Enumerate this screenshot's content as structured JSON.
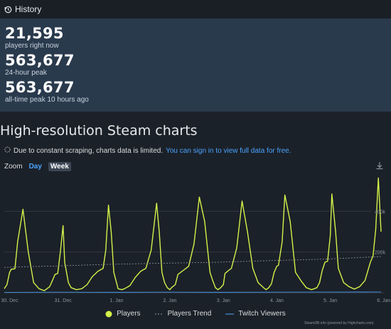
{
  "header": {
    "title": "History"
  },
  "stats": [
    {
      "value": "21,595",
      "label": "players right now"
    },
    {
      "value": "563,677",
      "label": "24-hour peak"
    },
    {
      "value": "563,677",
      "label": "all-time peak 10 hours ago"
    }
  ],
  "section_title": "High-resolution Steam charts",
  "notice": {
    "text": "Due to constant scraping, charts data is limited.",
    "link": "You can sign in to view full data for free."
  },
  "zoom": {
    "label": "Zoom",
    "day": "Day",
    "week": "Week"
  },
  "legend": {
    "players": "Players",
    "trend": "Players Trend",
    "twitch": "Twitch Viewers"
  },
  "credit": "SteamDB.info (powered by Highcharts.com)",
  "colors": {
    "players": "#d4f24a",
    "trend": "#8f98a1",
    "twitch": "#4aa3ff",
    "accent": "#4aa3ff"
  },
  "chart_data": {
    "type": "line",
    "x_tick_labels": [
      "30. Dec",
      "31. Dec",
      "1. Jan",
      "2. Jan",
      "3. Jan",
      "4. Jan",
      "5. Jan",
      "6. Jan"
    ],
    "y_tick_labels": [
      "400k",
      "200k"
    ],
    "ylim": [
      0,
      600000
    ],
    "series": [
      {
        "name": "Players",
        "x": [
          0,
          0.05,
          0.1,
          0.13,
          0.2,
          0.25,
          0.35,
          0.45,
          0.55,
          0.65,
          0.75,
          0.85,
          0.9,
          0.95,
          1.0,
          1.05,
          1.1,
          1.13,
          1.2,
          1.25,
          1.35,
          1.45,
          1.55,
          1.65,
          1.75,
          1.85,
          1.9,
          1.95,
          2.0,
          2.05,
          2.1,
          2.13,
          2.2,
          2.25,
          2.35,
          2.45,
          2.55,
          2.65,
          2.75,
          2.85,
          2.9,
          2.95,
          3.0,
          3.05,
          3.1,
          3.13,
          3.2,
          3.25,
          3.35,
          3.45,
          3.55,
          3.65,
          3.75,
          3.85,
          3.9,
          3.95,
          4.0,
          4.05,
          4.1,
          4.13,
          4.2,
          4.25,
          4.35,
          4.45,
          4.55,
          4.65,
          4.75,
          4.85,
          4.9,
          4.95,
          5.0,
          5.05,
          5.1,
          5.13,
          5.2,
          5.25,
          5.35,
          5.45,
          5.55,
          5.65,
          5.75,
          5.85,
          5.9,
          5.95,
          6.0,
          6.05,
          6.1,
          6.13,
          6.2,
          6.25,
          6.35,
          6.45,
          6.55,
          6.65,
          6.75,
          6.85,
          6.9,
          6.95,
          7.0,
          7.05
        ],
        "values": [
          20000,
          40000,
          100000,
          115000,
          118000,
          250000,
          410000,
          200000,
          50000,
          20000,
          10000,
          30000,
          60000,
          90000,
          95000,
          200000,
          330000,
          150000,
          50000,
          25000,
          15000,
          20000,
          40000,
          80000,
          105000,
          120000,
          210000,
          430000,
          300000,
          100000,
          50000,
          20000,
          15000,
          20000,
          35000,
          75000,
          105000,
          120000,
          210000,
          440000,
          300000,
          100000,
          50000,
          25000,
          15000,
          25000,
          40000,
          90000,
          110000,
          130000,
          240000,
          470000,
          350000,
          100000,
          60000,
          25000,
          15000,
          25000,
          40000,
          95000,
          110000,
          120000,
          220000,
          450000,
          300000,
          120000,
          50000,
          25000,
          15000,
          25000,
          45000,
          100000,
          130000,
          135000,
          250000,
          480000,
          350000,
          100000,
          60000,
          25000,
          15000,
          25000,
          50000,
          110000,
          150000,
          155000,
          280000,
          485000,
          300000,
          120000,
          50000,
          30000,
          18000,
          30000,
          60000,
          150000,
          180000,
          310000,
          563677,
          300000
        ]
      },
      {
        "name": "Players Trend",
        "x": [
          0,
          1,
          2,
          3,
          4,
          5,
          6,
          7.05
        ],
        "values": [
          125000,
          132000,
          140000,
          145000,
          150000,
          158000,
          165000,
          178000
        ]
      },
      {
        "name": "Twitch Viewers",
        "x": [
          0,
          1,
          2,
          3,
          4,
          5,
          6,
          7.05
        ],
        "values": [
          2000,
          3000,
          2500,
          3000,
          2500,
          3000,
          3500,
          4000
        ]
      }
    ]
  }
}
